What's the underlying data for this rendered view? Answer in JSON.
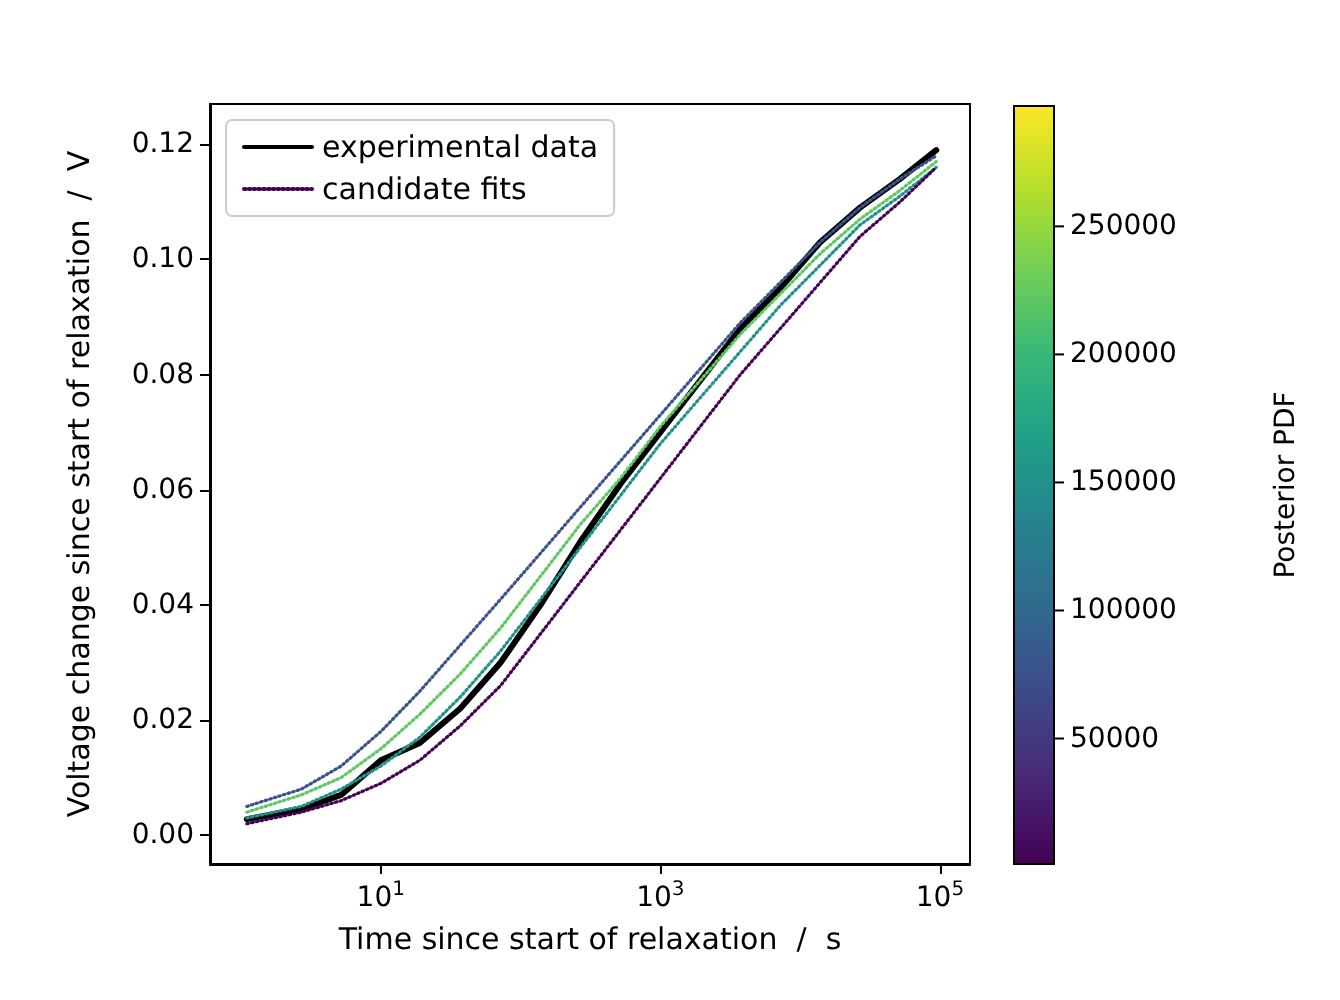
{
  "chart_data": {
    "type": "line",
    "xlabel": "Time since start of relaxation  /  s",
    "ylabel": "Voltage change since start of relaxation  /  V",
    "clabel": "Posterior PDF",
    "log": "x",
    "x": [
      1.1,
      2.7,
      5.2,
      10,
      19,
      37,
      72,
      139,
      268,
      518,
      1000,
      1930,
      3730,
      7200,
      13900,
      26800,
      51800,
      94000
    ],
    "series": [
      {
        "color": "#3b528b",
        "line_style": "dotted",
        "values": [
          0.005,
          0.008,
          0.012,
          0.018,
          0.025,
          0.033,
          0.041,
          0.049,
          0.057,
          0.065,
          0.073,
          0.081,
          0.089,
          0.096,
          0.103,
          0.109,
          0.114,
          0.118
        ]
      },
      {
        "color": "#5ec962",
        "line_style": "dotted",
        "values": [
          0.004,
          0.007,
          0.01,
          0.015,
          0.021,
          0.028,
          0.036,
          0.045,
          0.054,
          0.062,
          0.071,
          0.079,
          0.087,
          0.094,
          0.101,
          0.107,
          0.112,
          0.117
        ]
      },
      {
        "color": "#21918c",
        "line_style": "dotted",
        "values": [
          0.003,
          0.005,
          0.008,
          0.012,
          0.017,
          0.024,
          0.032,
          0.041,
          0.05,
          0.059,
          0.068,
          0.076,
          0.084,
          0.092,
          0.099,
          0.106,
          0.111,
          0.116
        ]
      },
      {
        "name": "candidate fits",
        "color": "#440154",
        "line_style": "dotted",
        "values": [
          0.002,
          0.004,
          0.006,
          0.009,
          0.013,
          0.019,
          0.026,
          0.035,
          0.044,
          0.053,
          0.062,
          0.071,
          0.08,
          0.088,
          0.096,
          0.104,
          0.11,
          0.116
        ]
      },
      {
        "name": "experimental data",
        "color": "#000000",
        "line_style": "solid",
        "values": [
          0.0028,
          0.0045,
          0.007,
          0.013,
          0.016,
          0.022,
          0.03,
          0.04,
          0.051,
          0.061,
          0.07,
          0.079,
          0.088,
          0.095,
          0.103,
          0.109,
          0.114,
          0.119
        ]
      }
    ],
    "xlim": [
      0.6,
      164000
    ],
    "xticks": [
      {
        "value": 10,
        "label": "10$^{1}$"
      },
      {
        "value": 1000,
        "label": "10$^{3}$"
      },
      {
        "value": 100000,
        "label": "10$^{5}$"
      }
    ],
    "ylim": [
      -0.005,
      0.127
    ],
    "yticks": [
      {
        "value": 0,
        "label": "0.00"
      },
      {
        "value": 0.02,
        "label": "0.02"
      },
      {
        "value": 0.04,
        "label": "0.04"
      },
      {
        "value": 0.06,
        "label": "0.06"
      },
      {
        "value": 0.08,
        "label": "0.08"
      },
      {
        "value": 0.1,
        "label": "0.10"
      },
      {
        "value": 0.12,
        "label": "0.12"
      }
    ],
    "clim": [
      1000,
      297000
    ],
    "cticks": [
      50000,
      100000,
      150000,
      200000,
      250000
    ],
    "legend": "top left",
    "grid": false,
    "marker": "none"
  }
}
